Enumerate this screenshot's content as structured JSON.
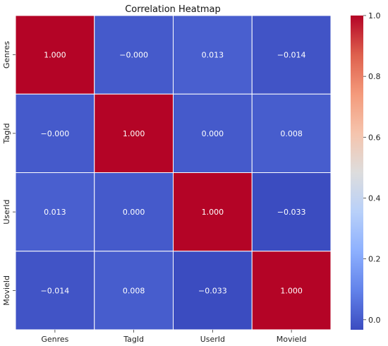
{
  "chart_data": {
    "type": "heatmap",
    "title": "Correlation Heatmap",
    "x_labels": [
      "Genres",
      "TagId",
      "UserId",
      "MovieId"
    ],
    "y_labels": [
      "Genres",
      "TagId",
      "UserId",
      "MovieId"
    ],
    "values": [
      [
        1.0,
        -0.0,
        0.013,
        -0.014
      ],
      [
        -0.0,
        1.0,
        0.0,
        0.008
      ],
      [
        0.013,
        0.0,
        1.0,
        -0.033
      ],
      [
        -0.014,
        0.008,
        -0.033,
        1.0
      ]
    ],
    "annotations": [
      [
        "1.000",
        "−0.000",
        "0.013",
        "−0.014"
      ],
      [
        "−0.000",
        "1.000",
        "0.000",
        "0.008"
      ],
      [
        "0.013",
        "0.000",
        "1.000",
        "−0.033"
      ],
      [
        "−0.014",
        "0.008",
        "−0.033",
        "1.000"
      ]
    ],
    "colormap": "coolwarm",
    "colorbar": {
      "range": [
        -0.033,
        1.0
      ],
      "ticks": [
        0.0,
        0.2,
        0.4,
        0.6,
        0.8,
        1.0
      ],
      "tick_labels": [
        "0.0",
        "0.2",
        "0.4",
        "0.6",
        "0.8",
        "1.0"
      ]
    },
    "colors": {
      "high": "#b40426",
      "low": "#3b4cc0",
      "mid": "#dddddd",
      "grid": "#ffffff"
    }
  }
}
